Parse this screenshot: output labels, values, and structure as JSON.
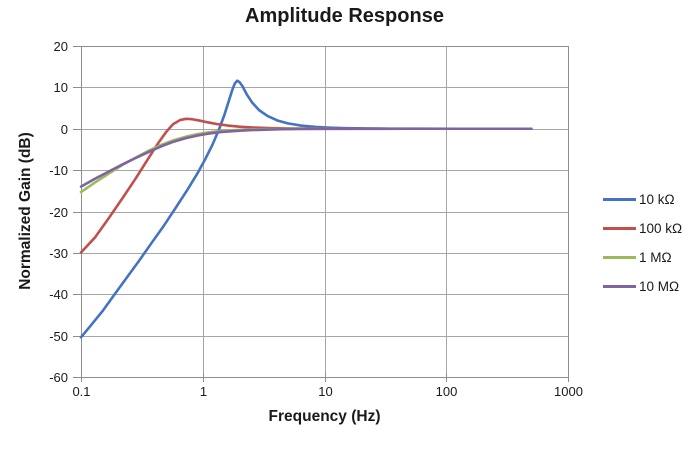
{
  "chart_data": {
    "type": "line",
    "title": "Amplitude Response",
    "xlabel": "Frequency (Hz)",
    "ylabel": "Normalized Gain (dB)",
    "x_scale": "log",
    "xlim": [
      0.1,
      1000
    ],
    "ylim": [
      -60,
      20
    ],
    "x_ticks": [
      "0.1",
      "1",
      "10",
      "100",
      "1000"
    ],
    "y_ticks": [
      20,
      10,
      0,
      -10,
      -20,
      -30,
      -40,
      -50,
      -60
    ],
    "grid": true,
    "legend_position": "right",
    "series": [
      {
        "name": "10 kΩ",
        "color": "#4472C4",
        "points": [
          [
            0.1,
            -50.4
          ],
          [
            0.12,
            -47.6
          ],
          [
            0.15,
            -44.1
          ],
          [
            0.19,
            -39.9
          ],
          [
            0.24,
            -35.8
          ],
          [
            0.3,
            -31.9
          ],
          [
            0.38,
            -27.6
          ],
          [
            0.48,
            -23.4
          ],
          [
            0.6,
            -19.1
          ],
          [
            0.75,
            -14.7
          ],
          [
            0.9,
            -10.9
          ],
          [
            1.05,
            -7.3
          ],
          [
            1.2,
            -3.9
          ],
          [
            1.35,
            -0.4
          ],
          [
            1.5,
            3.2
          ],
          [
            1.62,
            6.3
          ],
          [
            1.74,
            9.2
          ],
          [
            1.83,
            10.9
          ],
          [
            1.92,
            11.6
          ],
          [
            2.0,
            11.3
          ],
          [
            2.12,
            10.3
          ],
          [
            2.3,
            8.3
          ],
          [
            2.55,
            6.3
          ],
          [
            2.9,
            4.5
          ],
          [
            3.4,
            3.1
          ],
          [
            4.1,
            2.0
          ],
          [
            5.0,
            1.3
          ],
          [
            6.5,
            0.74
          ],
          [
            8.5,
            0.43
          ],
          [
            11,
            0.26
          ],
          [
            15,
            0.14
          ],
          [
            22,
            0.07
          ],
          [
            35,
            0.03
          ],
          [
            60,
            0.01
          ],
          [
            120,
            0
          ],
          [
            250,
            0
          ],
          [
            500,
            0
          ]
        ]
      },
      {
        "name": "100 kΩ",
        "color": "#C0504D",
        "points": [
          [
            0.1,
            -29.9
          ],
          [
            0.13,
            -26.3
          ],
          [
            0.17,
            -21.5
          ],
          [
            0.22,
            -16.7
          ],
          [
            0.28,
            -12.1
          ],
          [
            0.35,
            -7.6
          ],
          [
            0.43,
            -3.5
          ],
          [
            0.5,
            -0.8
          ],
          [
            0.57,
            1.1
          ],
          [
            0.65,
            2.1
          ],
          [
            0.73,
            2.4
          ],
          [
            0.82,
            2.3
          ],
          [
            0.95,
            1.95
          ],
          [
            1.1,
            1.55
          ],
          [
            1.3,
            1.15
          ],
          [
            1.6,
            0.78
          ],
          [
            2.0,
            0.5
          ],
          [
            2.6,
            0.3
          ],
          [
            3.5,
            0.17
          ],
          [
            5,
            0.09
          ],
          [
            7,
            0.04
          ],
          [
            10,
            0.02
          ],
          [
            16,
            0.01
          ],
          [
            30,
            0
          ],
          [
            80,
            0
          ],
          [
            200,
            0
          ],
          [
            500,
            0
          ]
        ]
      },
      {
        "name": "1 MΩ",
        "color": "#9BBB59",
        "points": [
          [
            0.1,
            -15.3
          ],
          [
            0.13,
            -13.0
          ],
          [
            0.17,
            -10.8
          ],
          [
            0.22,
            -8.7
          ],
          [
            0.28,
            -7.0
          ],
          [
            0.36,
            -5.3
          ],
          [
            0.46,
            -3.85
          ],
          [
            0.58,
            -2.75
          ],
          [
            0.72,
            -1.95
          ],
          [
            0.9,
            -1.3
          ],
          [
            1.1,
            -0.9
          ],
          [
            1.4,
            -0.55
          ],
          [
            1.8,
            -0.33
          ],
          [
            2.4,
            -0.18
          ],
          [
            3.2,
            -0.1
          ],
          [
            4.5,
            -0.05
          ],
          [
            6.5,
            -0.02
          ],
          [
            10,
            -0.01
          ],
          [
            20,
            0
          ],
          [
            50,
            0
          ],
          [
            150,
            0
          ],
          [
            500,
            0
          ]
        ]
      },
      {
        "name": "10 MΩ",
        "color": "#8064A2",
        "points": [
          [
            0.1,
            -14.0
          ],
          [
            0.13,
            -12.1
          ],
          [
            0.17,
            -10.3
          ],
          [
            0.22,
            -8.6
          ],
          [
            0.28,
            -7.1
          ],
          [
            0.36,
            -5.6
          ],
          [
            0.46,
            -4.2
          ],
          [
            0.58,
            -3.1
          ],
          [
            0.72,
            -2.3
          ],
          [
            0.9,
            -1.65
          ],
          [
            1.1,
            -1.2
          ],
          [
            1.4,
            -0.8
          ],
          [
            1.8,
            -0.55
          ],
          [
            2.4,
            -0.35
          ],
          [
            3.2,
            -0.22
          ],
          [
            4.5,
            -0.12
          ],
          [
            6.5,
            -0.06
          ],
          [
            10,
            -0.03
          ],
          [
            20,
            -0.01
          ],
          [
            50,
            0
          ],
          [
            150,
            0
          ],
          [
            500,
            0
          ]
        ]
      }
    ]
  },
  "style": {
    "grid_color": "#A6A6A6",
    "axis_color": "#8E8E8E",
    "text_color": "#1A1A1A",
    "line_width": 2.6
  }
}
